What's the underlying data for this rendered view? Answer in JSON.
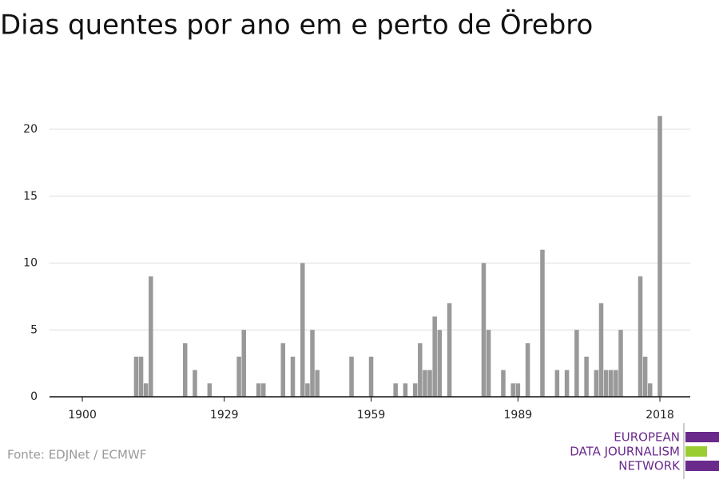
{
  "chart_data": {
    "type": "bar",
    "title": "Dias quentes por ano em e perto de Örebro",
    "source": "Fonte: EDJNet / ECMWF",
    "logo": {
      "lines": [
        "EUROPEAN",
        "DATA JOURNALISM",
        "NETWORK"
      ]
    },
    "color": "#999999",
    "grid": true,
    "x": [
      1900,
      1901,
      1902,
      1903,
      1904,
      1905,
      1906,
      1907,
      1908,
      1909,
      1910,
      1911,
      1912,
      1913,
      1914,
      1915,
      1916,
      1917,
      1918,
      1919,
      1920,
      1921,
      1922,
      1923,
      1924,
      1925,
      1926,
      1927,
      1928,
      1929,
      1930,
      1931,
      1932,
      1933,
      1934,
      1935,
      1936,
      1937,
      1938,
      1939,
      1940,
      1941,
      1942,
      1943,
      1944,
      1945,
      1946,
      1947,
      1948,
      1949,
      1950,
      1951,
      1952,
      1953,
      1954,
      1955,
      1956,
      1957,
      1958,
      1959,
      1960,
      1961,
      1962,
      1963,
      1964,
      1965,
      1966,
      1967,
      1968,
      1969,
      1970,
      1971,
      1972,
      1973,
      1974,
      1975,
      1976,
      1977,
      1978,
      1979,
      1980,
      1981,
      1982,
      1983,
      1984,
      1985,
      1986,
      1987,
      1988,
      1989,
      1990,
      1991,
      1992,
      1993,
      1994,
      1995,
      1996,
      1997,
      1998,
      1999,
      2000,
      2001,
      2002,
      2003,
      2004,
      2005,
      2006,
      2007,
      2008,
      2009,
      2010,
      2011,
      2012,
      2013,
      2014,
      2015,
      2016,
      2017,
      2018
    ],
    "values": [
      0,
      0,
      0,
      0,
      0,
      0,
      0,
      0,
      0,
      0,
      0,
      3,
      3,
      1,
      9,
      0,
      0,
      0,
      0,
      0,
      0,
      4,
      0,
      2,
      0,
      0,
      1,
      0,
      0,
      0,
      0,
      0,
      3,
      5,
      0,
      0,
      1,
      1,
      0,
      0,
      0,
      4,
      0,
      3,
      0,
      10,
      1,
      5,
      2,
      0,
      0,
      0,
      0,
      0,
      0,
      3,
      0,
      0,
      0,
      3,
      0,
      0,
      0,
      0,
      1,
      0,
      1,
      0,
      1,
      4,
      2,
      2,
      6,
      5,
      0,
      7,
      0,
      0,
      0,
      0,
      0,
      0,
      10,
      5,
      0,
      0,
      2,
      0,
      1,
      1,
      0,
      4,
      0,
      0,
      11,
      0,
      0,
      2,
      0,
      2,
      0,
      5,
      0,
      3,
      0,
      2,
      7,
      2,
      2,
      2,
      5,
      0,
      0,
      0,
      9,
      3,
      1,
      0,
      21
    ],
    "xlim": [
      1893.3,
      2024.2
    ],
    "xticks": [
      1900,
      1929,
      1959,
      1989,
      2018
    ],
    "ylim": [
      0,
      21
    ],
    "yticks": [
      0,
      5,
      10,
      15,
      20
    ]
  }
}
